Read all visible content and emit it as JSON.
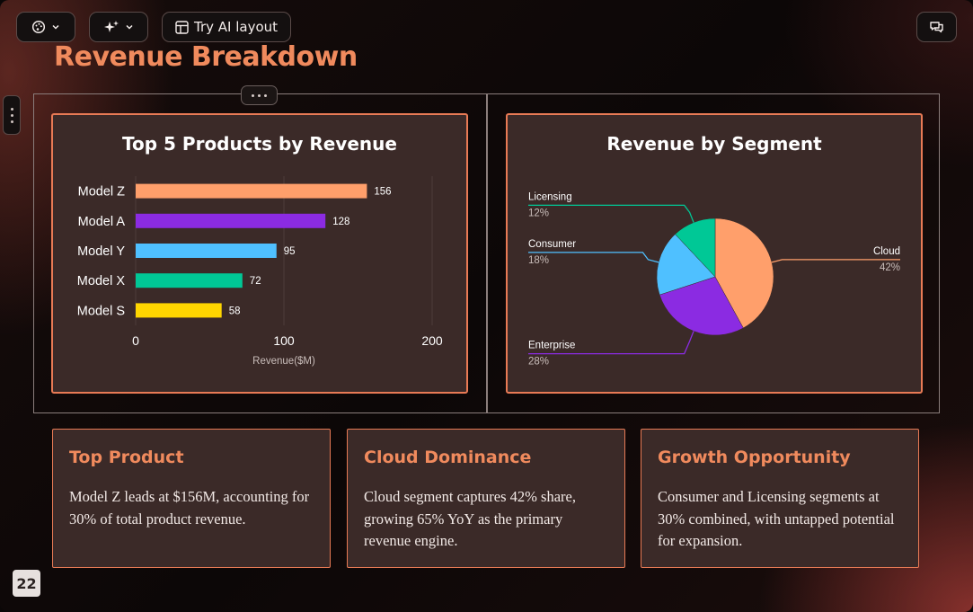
{
  "toolbar": {
    "theme_button": {
      "icon": "palette-icon"
    },
    "ai_button": {
      "icon": "sparkles-icon"
    },
    "try_ai_layout_label": "Try AI layout",
    "comments_button": {
      "icon": "comment-icon"
    }
  },
  "slide": {
    "title": "Revenue Breakdown",
    "page_number": "22"
  },
  "bar_chart_title": "Top 5 Products by Revenue",
  "pie_chart_title": "Revenue by Segment",
  "chart_data": [
    {
      "type": "bar",
      "orientation": "horizontal",
      "title": "Top 5 Products by Revenue",
      "categories": [
        "Model Z",
        "Model A",
        "Model Y",
        "Model X",
        "Model S"
      ],
      "values": [
        156,
        128,
        95,
        72,
        58
      ],
      "colors": [
        "#ff9f6b",
        "#8b2be2",
        "#4fc0ff",
        "#00c896",
        "#ffd600"
      ],
      "xlabel": "Revenue($M)",
      "ylabel": "",
      "xlim": [
        0,
        200
      ],
      "xticks": [
        0,
        100,
        200
      ],
      "data_labels": true,
      "grid": true
    },
    {
      "type": "pie",
      "title": "Revenue by Segment",
      "labels": [
        "Cloud",
        "Enterprise",
        "Consumer",
        "Licensing"
      ],
      "values": [
        42,
        28,
        18,
        12
      ],
      "value_labels": [
        "42%",
        "28%",
        "18%",
        "12%"
      ],
      "colors": [
        "#ff9f6b",
        "#8b2be2",
        "#4fc0ff",
        "#00c896"
      ]
    }
  ],
  "insights": [
    {
      "title": "Top Product",
      "text": "Model Z leads at $156M, accounting for 30% of total product revenue."
    },
    {
      "title": "Cloud Dominance",
      "text": "Cloud segment captures 42% share, growing 65% YoY as the primary revenue engine."
    },
    {
      "title": "Growth Opportunity",
      "text": "Consumer and Licensing segments at 30% combined, with untapped potential for expansion."
    }
  ]
}
